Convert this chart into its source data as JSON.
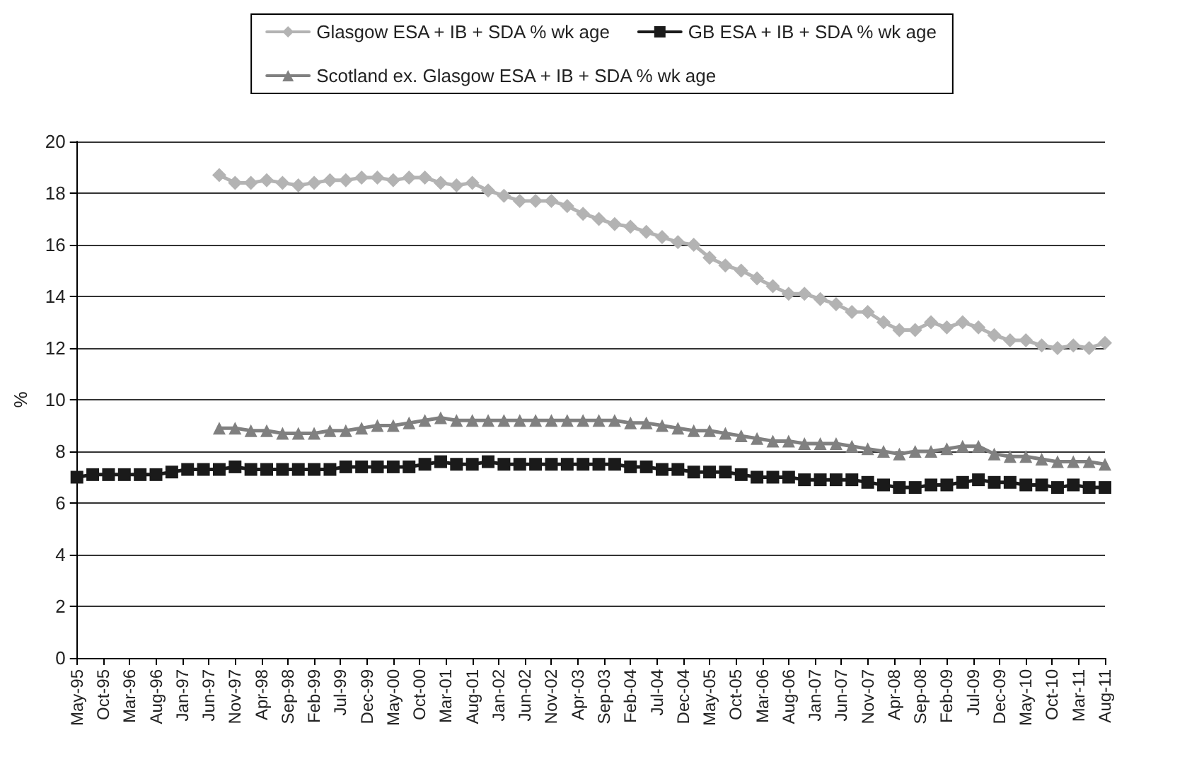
{
  "chart_data": {
    "type": "line",
    "x": [
      "1995-05",
      "1995-08",
      "1995-11",
      "1996-02",
      "1996-05",
      "1996-08",
      "1996-11",
      "1997-02",
      "1997-05",
      "1997-08",
      "1997-11",
      "1998-02",
      "1998-05",
      "1998-08",
      "1998-11",
      "1999-02",
      "1999-05",
      "1999-08",
      "1999-11",
      "2000-02",
      "2000-05",
      "2000-08",
      "2000-11",
      "2001-02",
      "2001-05",
      "2001-08",
      "2001-11",
      "2002-02",
      "2002-05",
      "2002-08",
      "2002-11",
      "2003-02",
      "2003-05",
      "2003-08",
      "2003-11",
      "2004-02",
      "2004-05",
      "2004-08",
      "2004-11",
      "2005-02",
      "2005-05",
      "2005-08",
      "2005-11",
      "2006-02",
      "2006-05",
      "2006-08",
      "2006-11",
      "2007-02",
      "2007-05",
      "2007-08",
      "2007-11",
      "2008-02",
      "2008-05",
      "2008-08",
      "2008-11",
      "2009-02",
      "2009-05",
      "2009-08",
      "2009-11",
      "2010-02",
      "2010-05",
      "2010-08",
      "2010-11",
      "2011-02",
      "2011-05",
      "2011-08"
    ],
    "series": [
      {
        "name": "Glasgow ESA + IB + SDA % wk age",
        "color": "#b3b3b3",
        "marker": "diamond",
        "values": [
          null,
          null,
          null,
          null,
          null,
          null,
          null,
          null,
          null,
          18.7,
          18.4,
          18.4,
          18.5,
          18.4,
          18.3,
          18.4,
          18.5,
          18.5,
          18.6,
          18.6,
          18.5,
          18.6,
          18.6,
          18.4,
          18.3,
          18.4,
          18.1,
          17.9,
          17.7,
          17.7,
          17.7,
          17.5,
          17.2,
          17.0,
          16.8,
          16.7,
          16.5,
          16.3,
          16.1,
          16.0,
          15.5,
          15.2,
          15.0,
          14.7,
          14.4,
          14.1,
          14.1,
          13.9,
          13.7,
          13.4,
          13.4,
          13.0,
          12.7,
          12.7,
          13.0,
          12.8,
          13.0,
          12.8,
          12.5,
          12.3,
          12.3,
          12.1,
          12.0,
          12.1,
          12.0,
          12.2
        ]
      },
      {
        "name": "GB ESA + IB + SDA % wk age",
        "color": "#1a1a1a",
        "marker": "square",
        "values": [
          7.0,
          7.1,
          7.1,
          7.1,
          7.1,
          7.1,
          7.2,
          7.3,
          7.3,
          7.3,
          7.4,
          7.3,
          7.3,
          7.3,
          7.3,
          7.3,
          7.3,
          7.4,
          7.4,
          7.4,
          7.4,
          7.4,
          7.5,
          7.6,
          7.5,
          7.5,
          7.6,
          7.5,
          7.5,
          7.5,
          7.5,
          7.5,
          7.5,
          7.5,
          7.5,
          7.4,
          7.4,
          7.3,
          7.3,
          7.2,
          7.2,
          7.2,
          7.1,
          7.0,
          7.0,
          7.0,
          6.9,
          6.9,
          6.9,
          6.9,
          6.8,
          6.7,
          6.6,
          6.6,
          6.7,
          6.7,
          6.8,
          6.9,
          6.8,
          6.8,
          6.7,
          6.7,
          6.6,
          6.7,
          6.6,
          6.6
        ]
      },
      {
        "name": "Scotland ex. Glasgow ESA + IB + SDA % wk age",
        "color": "#808080",
        "marker": "triangle",
        "values": [
          null,
          null,
          null,
          null,
          null,
          null,
          null,
          null,
          null,
          8.9,
          8.9,
          8.8,
          8.8,
          8.7,
          8.7,
          8.7,
          8.8,
          8.8,
          8.9,
          9.0,
          9.0,
          9.1,
          9.2,
          9.3,
          9.2,
          9.2,
          9.2,
          9.2,
          9.2,
          9.2,
          9.2,
          9.2,
          9.2,
          9.2,
          9.2,
          9.1,
          9.1,
          9.0,
          8.9,
          8.8,
          8.8,
          8.7,
          8.6,
          8.5,
          8.4,
          8.4,
          8.3,
          8.3,
          8.3,
          8.2,
          8.1,
          8.0,
          7.9,
          8.0,
          8.0,
          8.1,
          8.2,
          8.2,
          7.9,
          7.8,
          7.8,
          7.7,
          7.6,
          7.6,
          7.6,
          7.5
        ]
      }
    ],
    "ylabel": "%",
    "ylim": [
      0,
      20
    ],
    "yticks": [
      0,
      2,
      4,
      6,
      8,
      10,
      12,
      14,
      16,
      18,
      20
    ],
    "xlim": [
      "1995-05",
      "2011-08"
    ],
    "xticks": [
      {
        "value": "1995-05",
        "label": "May-95"
      },
      {
        "value": "1995-10",
        "label": "Oct-95"
      },
      {
        "value": "1996-03",
        "label": "Mar-96"
      },
      {
        "value": "1996-08",
        "label": "Aug-96"
      },
      {
        "value": "1997-01",
        "label": "Jan-97"
      },
      {
        "value": "1997-06",
        "label": "Jun-97"
      },
      {
        "value": "1997-11",
        "label": "Nov-97"
      },
      {
        "value": "1998-04",
        "label": "Apr-98"
      },
      {
        "value": "1998-09",
        "label": "Sep-98"
      },
      {
        "value": "1999-02",
        "label": "Feb-99"
      },
      {
        "value": "1999-07",
        "label": "Jul-99"
      },
      {
        "value": "1999-12",
        "label": "Dec-99"
      },
      {
        "value": "2000-05",
        "label": "May-00"
      },
      {
        "value": "2000-10",
        "label": "Oct-00"
      },
      {
        "value": "2001-03",
        "label": "Mar-01"
      },
      {
        "value": "2001-08",
        "label": "Aug-01"
      },
      {
        "value": "2002-01",
        "label": "Jan-02"
      },
      {
        "value": "2002-06",
        "label": "Jun-02"
      },
      {
        "value": "2002-11",
        "label": "Nov-02"
      },
      {
        "value": "2003-04",
        "label": "Apr-03"
      },
      {
        "value": "2003-09",
        "label": "Sep-03"
      },
      {
        "value": "2004-02",
        "label": "Feb-04"
      },
      {
        "value": "2004-07",
        "label": "Jul-04"
      },
      {
        "value": "2004-12",
        "label": "Dec-04"
      },
      {
        "value": "2005-05",
        "label": "May-05"
      },
      {
        "value": "2005-10",
        "label": "Oct-05"
      },
      {
        "value": "2006-03",
        "label": "Mar-06"
      },
      {
        "value": "2006-08",
        "label": "Aug-06"
      },
      {
        "value": "2007-01",
        "label": "Jan-07"
      },
      {
        "value": "2007-06",
        "label": "Jun-07"
      },
      {
        "value": "2007-11",
        "label": "Nov-07"
      },
      {
        "value": "2008-04",
        "label": "Apr-08"
      },
      {
        "value": "2008-09",
        "label": "Sep-08"
      },
      {
        "value": "2009-02",
        "label": "Feb-09"
      },
      {
        "value": "2009-07",
        "label": "Jul-09"
      },
      {
        "value": "2009-12",
        "label": "Dec-09"
      },
      {
        "value": "2010-05",
        "label": "May-10"
      },
      {
        "value": "2010-10",
        "label": "Oct-10"
      },
      {
        "value": "2011-03",
        "label": "Mar-11"
      },
      {
        "value": "2011-08",
        "label": "Aug-11"
      }
    ],
    "grid": "y",
    "legend": "top"
  }
}
